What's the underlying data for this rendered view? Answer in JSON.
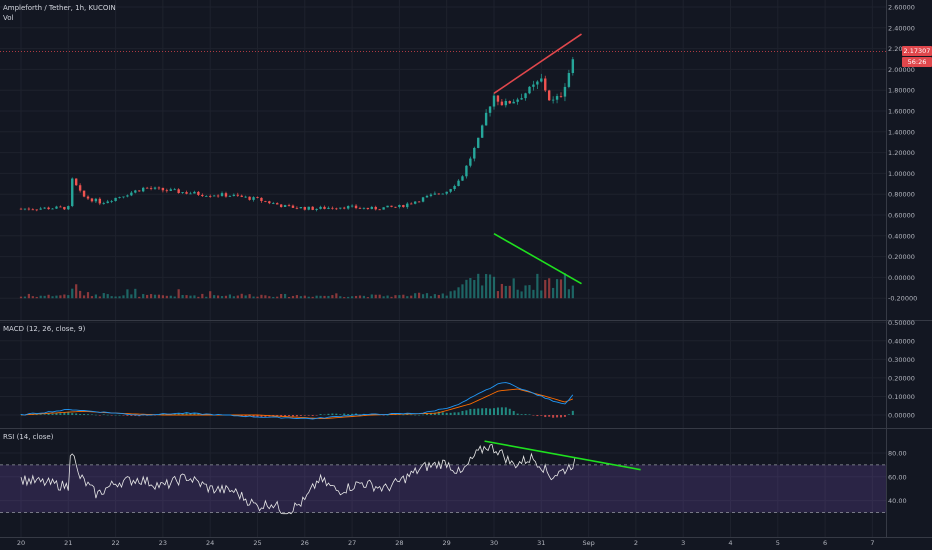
{
  "legend": {
    "symbol": "Ampleforth / Tether, 1h, KUCOIN",
    "volume": "Vol",
    "macd": "MACD (12, 26, close, 9)",
    "rsi": "RSI (14, close)"
  },
  "badges": {
    "price": "2.17307",
    "countdown": "56:26"
  },
  "colors": {
    "bg": "#131722",
    "grid": "#1e222d",
    "axisText": "#b2b5be",
    "up": "#26a69a",
    "down": "#ef5350",
    "trendRed": "#e0474c",
    "trendGreen": "#1fe01f",
    "macd": "#2196f3",
    "signal": "#ff6d00",
    "rsiLine": "#e8e8e8",
    "rsiBand": "#7e57c2"
  },
  "chart_data": [
    {
      "type": "candlestick",
      "title": "Ampleforth / Tether, 1h, KUCOIN",
      "x_ticks": [
        "20",
        "21",
        "22",
        "23",
        "24",
        "25",
        "26",
        "27",
        "28",
        "29",
        "30",
        "31",
        "Sep",
        "2",
        "3",
        "4",
        "5",
        "6",
        "7"
      ],
      "y_ticks": [
        "2.60000",
        "2.40000",
        "2.20000",
        "2.00000",
        "1.80000",
        "1.60000",
        "1.40000",
        "1.20000",
        "1.00000",
        "0.80000",
        "0.60000",
        "0.40000",
        "0.20000",
        "0.00000",
        "-0.20000"
      ],
      "ylim": [
        -0.3,
        2.68
      ],
      "last_price": 2.17307,
      "series": [
        {
          "name": "Price",
          "anchors": [
            [
              0,
              0.66
            ],
            [
              1,
              0.67
            ],
            [
              1.05,
              0.96
            ],
            [
              1.3,
              0.78
            ],
            [
              1.7,
              0.72
            ],
            [
              2.1,
              0.78
            ],
            [
              2.6,
              0.86
            ],
            [
              3.2,
              0.83
            ],
            [
              3.8,
              0.8
            ],
            [
              4.4,
              0.79
            ],
            [
              5.0,
              0.75
            ],
            [
              5.6,
              0.68
            ],
            [
              6.2,
              0.66
            ],
            [
              6.8,
              0.68
            ],
            [
              7.4,
              0.66
            ],
            [
              8.0,
              0.68
            ],
            [
              8.5,
              0.76
            ],
            [
              9.0,
              0.83
            ],
            [
              9.3,
              0.95
            ],
            [
              9.5,
              1.15
            ],
            [
              9.7,
              1.35
            ],
            [
              9.85,
              1.6
            ],
            [
              10.0,
              1.75
            ],
            [
              10.2,
              1.66
            ],
            [
              10.5,
              1.72
            ],
            [
              10.8,
              1.82
            ],
            [
              11.0,
              1.9
            ],
            [
              11.2,
              1.68
            ],
            [
              11.4,
              1.74
            ],
            [
              11.55,
              1.92
            ],
            [
              11.7,
              2.15
            ]
          ]
        },
        {
          "name": "Volume",
          "anchors": [
            [
              0,
              0.02
            ],
            [
              1,
              0.04
            ],
            [
              1.05,
              0.18
            ],
            [
              1.3,
              0.05
            ],
            [
              2,
              0.04
            ],
            [
              3,
              0.03
            ],
            [
              4.5,
              0.04
            ],
            [
              6,
              0.03
            ],
            [
              8,
              0.03
            ],
            [
              9,
              0.06
            ],
            [
              9.3,
              0.14
            ],
            [
              9.6,
              0.18
            ],
            [
              9.85,
              0.22
            ],
            [
              10.5,
              0.15
            ],
            [
              11,
              0.2
            ],
            [
              11.5,
              0.22
            ],
            [
              11.7,
              0.1
            ]
          ]
        }
      ],
      "trendlines": [
        {
          "name": "resistance",
          "from": [
            10.0,
            1.77
          ],
          "to": [
            11.85,
            2.34
          ]
        },
        {
          "name": "volume-divergence",
          "from": [
            10.0,
            0.42
          ],
          "to": [
            11.85,
            -0.06
          ]
        }
      ]
    },
    {
      "type": "line",
      "title": "MACD (12, 26, close, 9)",
      "y_ticks": [
        "0.50000",
        "0.40000",
        "0.30000",
        "0.20000",
        "0.10000",
        "0.00000"
      ],
      "ylim": [
        -0.04,
        0.52
      ],
      "series": [
        {
          "name": "MACD",
          "anchors": [
            [
              0,
              0.0
            ],
            [
              1.05,
              0.03
            ],
            [
              1.5,
              0.02
            ],
            [
              2.5,
              0.0
            ],
            [
              3.5,
              0.01
            ],
            [
              5,
              -0.01
            ],
            [
              6.2,
              -0.02
            ],
            [
              7,
              0.0
            ],
            [
              8.5,
              0.01
            ],
            [
              9.2,
              0.05
            ],
            [
              9.8,
              0.13
            ],
            [
              10.2,
              0.18
            ],
            [
              10.6,
              0.14
            ],
            [
              11.2,
              0.08
            ],
            [
              11.5,
              0.06
            ],
            [
              11.7,
              0.12
            ]
          ]
        },
        {
          "name": "Signal",
          "anchors": [
            [
              0,
              0.0
            ],
            [
              1.3,
              0.02
            ],
            [
              2,
              0.01
            ],
            [
              3,
              0.0
            ],
            [
              5,
              0.0
            ],
            [
              6.4,
              -0.02
            ],
            [
              7.4,
              0.0
            ],
            [
              8.8,
              0.01
            ],
            [
              9.5,
              0.06
            ],
            [
              10.1,
              0.13
            ],
            [
              10.5,
              0.14
            ],
            [
              11.1,
              0.1
            ],
            [
              11.5,
              0.07
            ],
            [
              11.7,
              0.09
            ]
          ]
        }
      ]
    },
    {
      "type": "line",
      "title": "RSI (14, close)",
      "y_ticks": [
        "80.00",
        "60.00",
        "40.00"
      ],
      "ylim": [
        28,
        94
      ],
      "bands": [
        70,
        30
      ],
      "series": [
        {
          "name": "RSI",
          "anchors": [
            [
              0,
              58
            ],
            [
              0.5,
              55
            ],
            [
              1.0,
              52
            ],
            [
              1.05,
              88
            ],
            [
              1.2,
              62
            ],
            [
              1.6,
              45
            ],
            [
              2.0,
              55
            ],
            [
              2.5,
              58
            ],
            [
              3.0,
              52
            ],
            [
              3.5,
              60
            ],
            [
              4.0,
              50
            ],
            [
              4.5,
              48
            ],
            [
              5.0,
              35
            ],
            [
              5.3,
              38
            ],
            [
              5.6,
              30
            ],
            [
              6.0,
              40
            ],
            [
              6.3,
              58
            ],
            [
              6.7,
              48
            ],
            [
              7.2,
              55
            ],
            [
              7.7,
              50
            ],
            [
              8.0,
              56
            ],
            [
              8.5,
              68
            ],
            [
              9.0,
              72
            ],
            [
              9.3,
              62
            ],
            [
              9.6,
              78
            ],
            [
              9.85,
              86
            ],
            [
              10.1,
              82
            ],
            [
              10.4,
              70
            ],
            [
              10.8,
              76
            ],
            [
              11.0,
              70
            ],
            [
              11.2,
              60
            ],
            [
              11.5,
              66
            ],
            [
              11.7,
              72
            ]
          ]
        }
      ],
      "trendlines": [
        {
          "name": "rsi-divergence",
          "from": [
            9.8,
            90
          ],
          "to": [
            13.1,
            66
          ]
        }
      ]
    }
  ]
}
